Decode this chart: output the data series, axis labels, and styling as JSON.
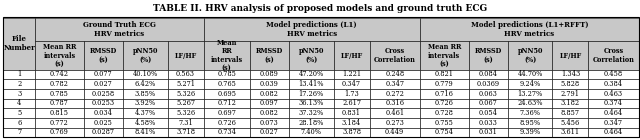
{
  "title": "TABLE II. HRV analysis of proposed models and ground truth ECG",
  "rows": [
    [
      "1",
      "0.742",
      "0.077",
      "40.10%",
      "0.563",
      "0.785",
      "0.089",
      "47.20%",
      "1.221",
      "0.248",
      "0.821",
      "0.084",
      "44.70%",
      "1.343",
      "0.458"
    ],
    [
      "2",
      "0.782",
      "0.027",
      "6.42%",
      "5.271",
      "0.765",
      "0.039",
      "13.41%",
      "0.347",
      "0.347",
      "0.779",
      "0.0369",
      "9.24%",
      "5.828",
      "0.384"
    ],
    [
      "3",
      "0.785",
      "0.0258",
      "3.85%",
      "5.326",
      "0.695",
      "0.082",
      "17.26%",
      "1.73",
      "0.272",
      "0.716",
      "0.063",
      "13.27%",
      "2.791",
      "0.463"
    ],
    [
      "4",
      "0.787",
      "0.0253",
      "3.92%",
      "5.267",
      "0.712",
      "0.097",
      "36.13%",
      "2.617",
      "0.316",
      "0.726",
      "0.067",
      "24.63%",
      "3.182",
      "0.374"
    ],
    [
      "5",
      "0.815",
      "0.034",
      "4.37%",
      "5.326",
      "0.697",
      "0.082",
      "37.32%",
      "0.831",
      "0.461",
      "0.728",
      "0.054",
      "7.36%",
      "8.857",
      "0.464"
    ],
    [
      "6",
      "0.772",
      "0.025",
      "4.58%",
      "7.31",
      "0.726",
      "0.073",
      "28.18%",
      "3.184",
      "0.273",
      "0.755",
      "0.033",
      "8.95%",
      "5.456",
      "0.347"
    ],
    [
      "7",
      "0.769",
      "0.0287",
      "8.41%",
      "3.718",
      "0.734",
      "0.027",
      "7.40%",
      "3.878",
      "0.449",
      "0.754",
      "0.031",
      "9.39%",
      "3.611",
      "0.464"
    ]
  ],
  "col_headers_gt": [
    "Mean RR\nintervals\n(s)",
    "RMSSD\n(s)",
    "pNN50\n(%)",
    "LF/HF"
  ],
  "col_headers_l1": [
    "Mean\nRR\nintervals\n(s)",
    "RMSSD\n(s)",
    "pNN50\n(%)",
    "LF/HF",
    "Cross\nCorrelation"
  ],
  "col_headers_rfft": [
    "Mean RR\nintervals\n(s)",
    "RMSSD\n(s)",
    "pNN50\n(%)",
    "LF/HF",
    "Cross\nCorrelation"
  ],
  "bg_color": "#ffffff",
  "header_bg": "#c8c8c8",
  "title_font_size": 6.5,
  "font_size": 4.8,
  "header_font_size": 5.0
}
